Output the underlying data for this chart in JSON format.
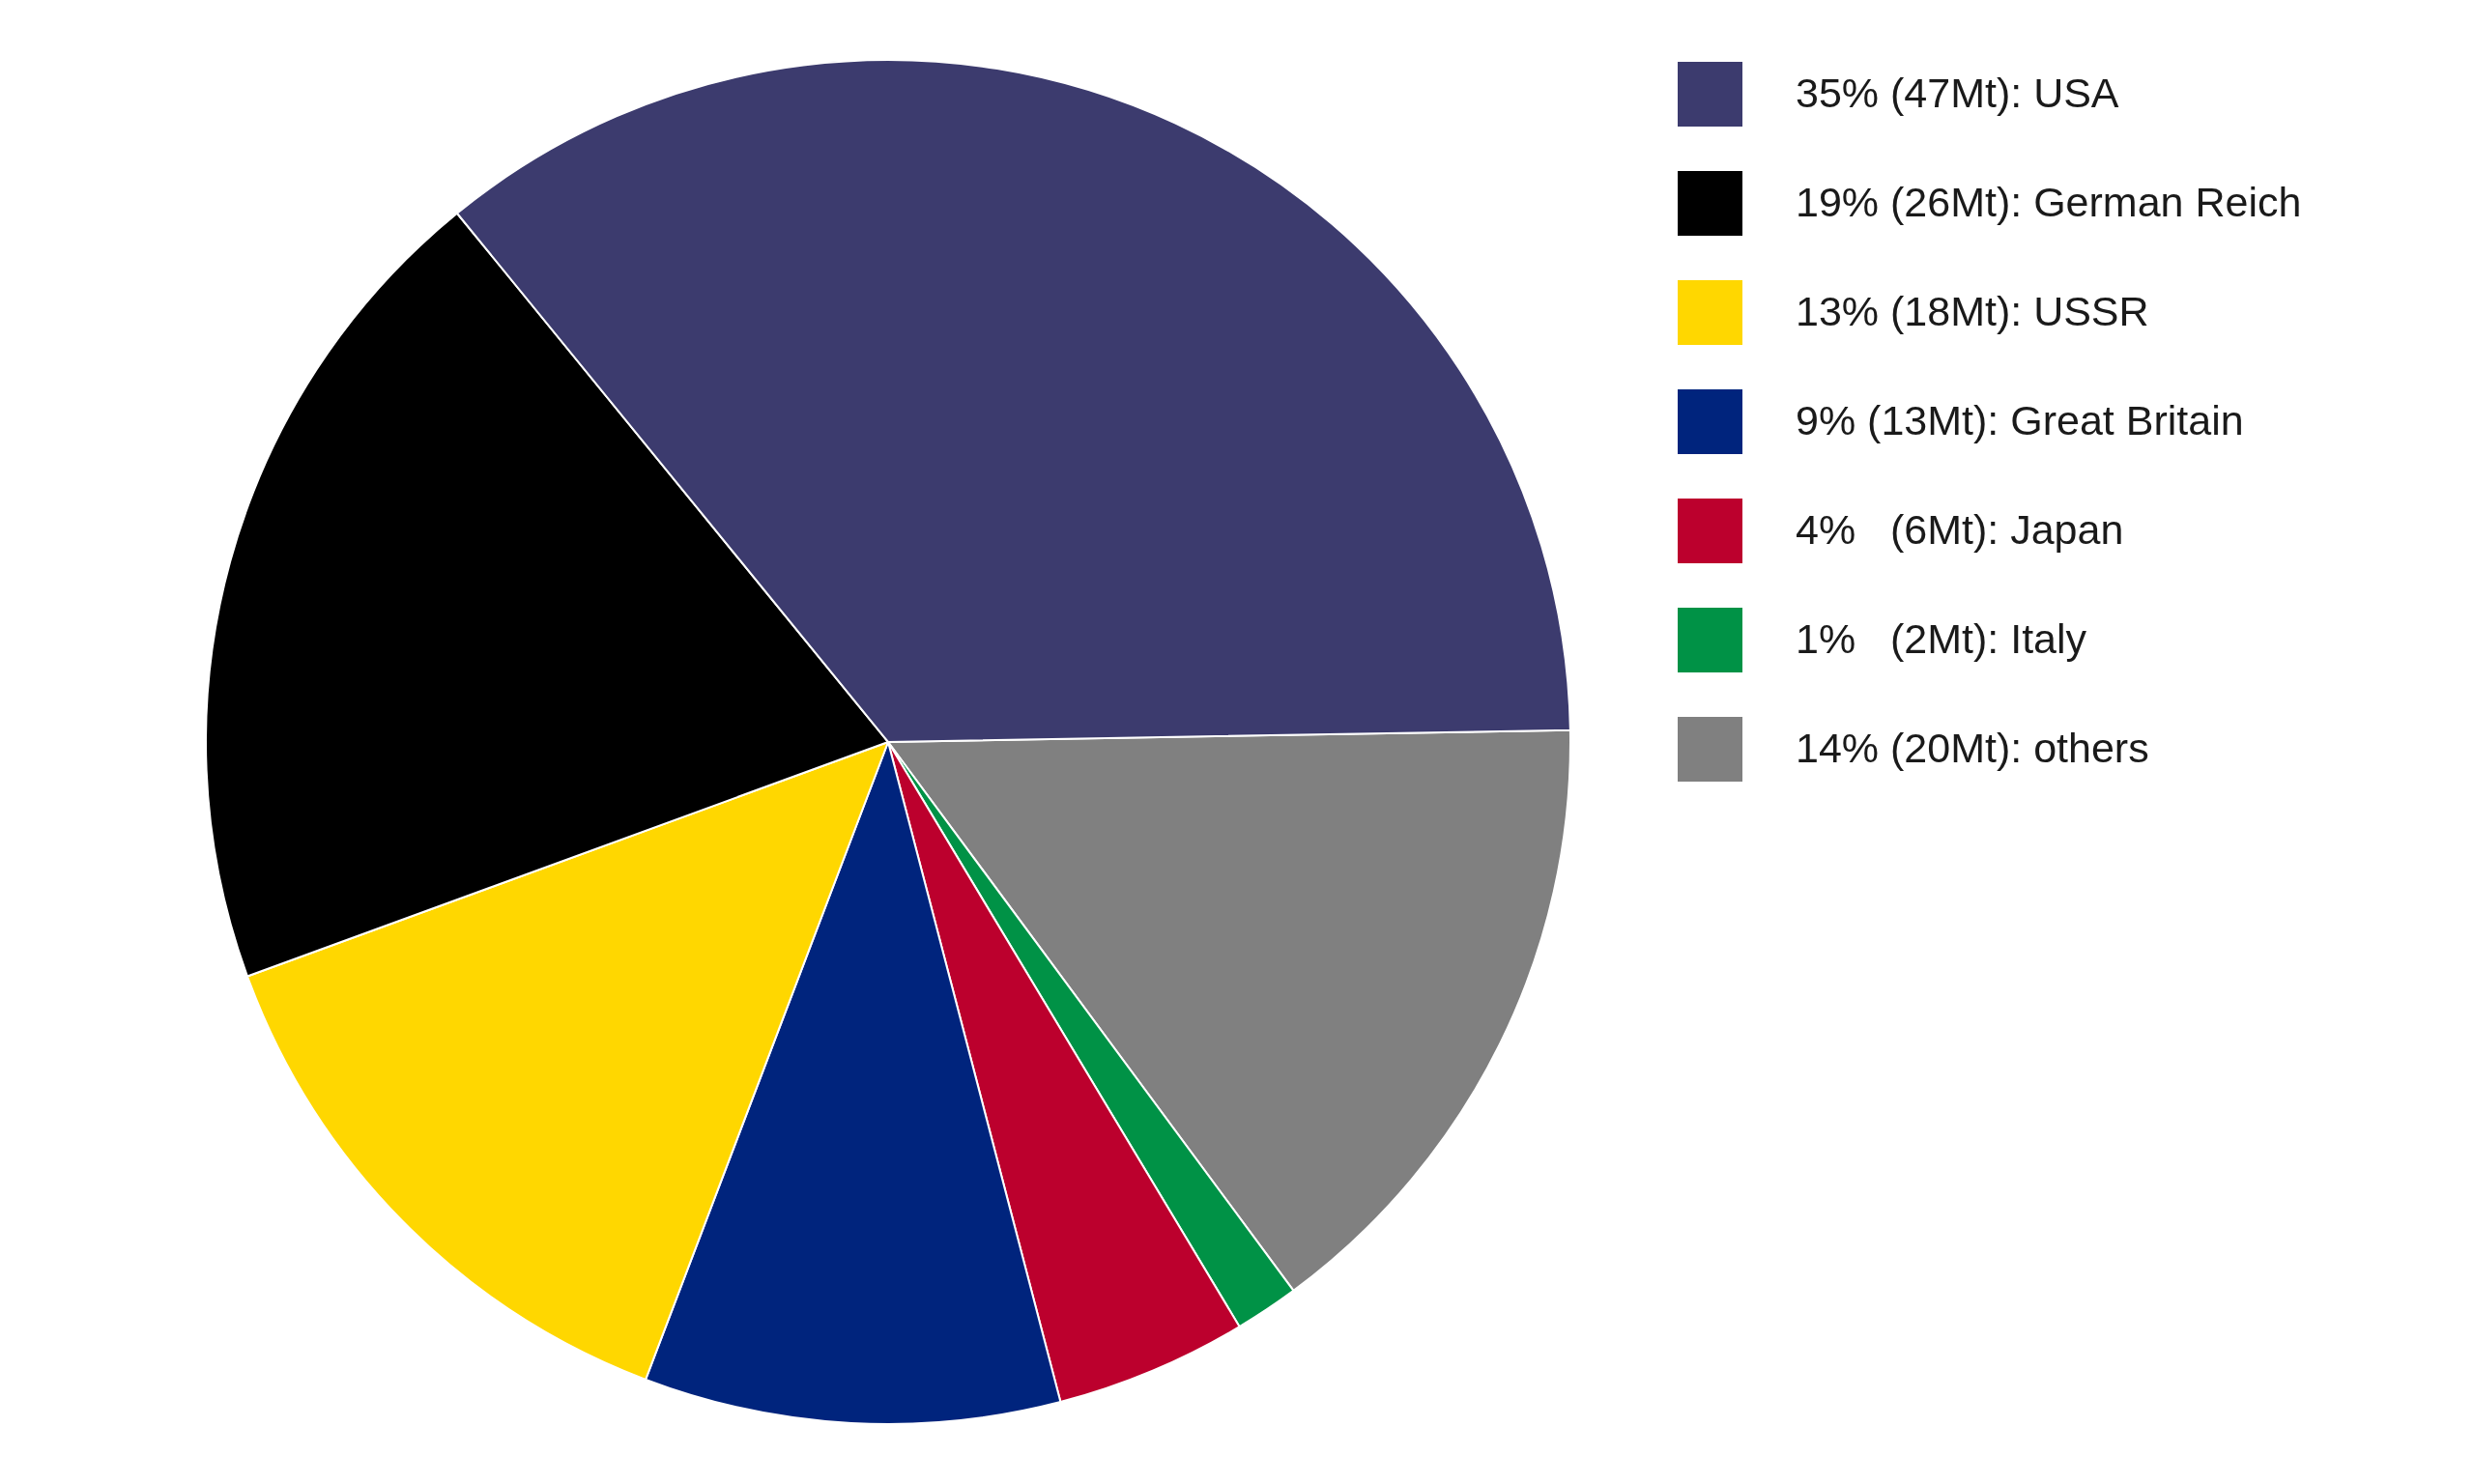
{
  "chart_data": {
    "type": "pie",
    "categories": [
      "35% (47Mt): USA",
      "19% (26Mt): German Reich",
      "13% (18Mt): USSR",
      "9% (13Mt): Great Britain",
      "4%   (6Mt): Japan",
      "1%   (2Mt): Italy",
      "14% (20Mt): others"
    ],
    "values": [
      47,
      26,
      18,
      13,
      6,
      2,
      20
    ],
    "colors": [
      "#3c3b6e",
      "#000000",
      "#ffd700",
      "#00247d",
      "#bc002d",
      "#009246",
      "#808080"
    ],
    "legend": "top right"
  }
}
